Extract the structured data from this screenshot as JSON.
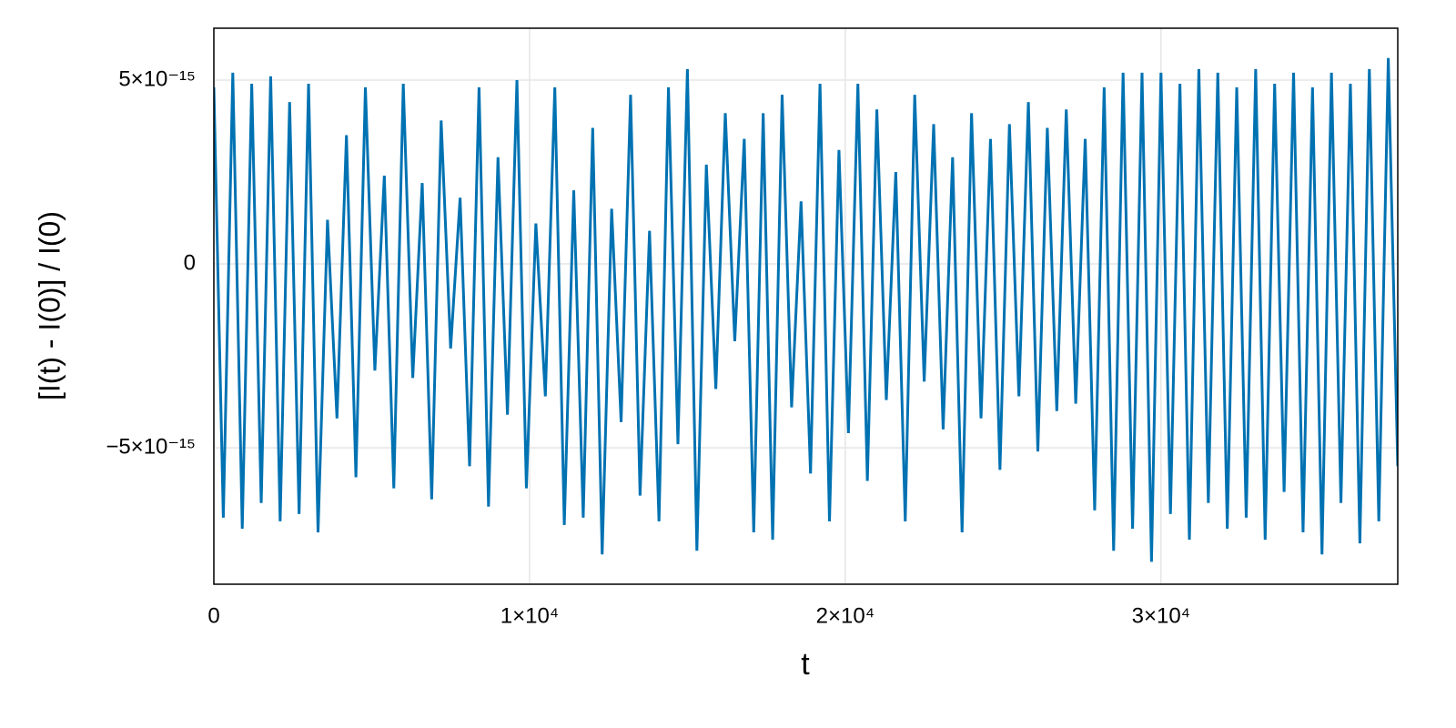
{
  "chart_data": {
    "type": "line",
    "xlabel": "t",
    "ylabel": "[I(t) - I(0)] / I(0)",
    "x": [
      0,
      300,
      600,
      900,
      1200,
      1500,
      1800,
      2100,
      2400,
      2700,
      3000,
      3300,
      3600,
      3900,
      4200,
      4500,
      4800,
      5100,
      5400,
      5700,
      6000,
      6300,
      6600,
      6900,
      7200,
      7500,
      7800,
      8100,
      8400,
      8700,
      9000,
      9300,
      9600,
      9900,
      10200,
      10500,
      10800,
      11100,
      11400,
      11700,
      12000,
      12300,
      12600,
      12900,
      13200,
      13500,
      13800,
      14100,
      14400,
      14700,
      15000,
      15300,
      15600,
      15900,
      16200,
      16500,
      16800,
      17100,
      17400,
      17700,
      18000,
      18300,
      18600,
      18900,
      19200,
      19500,
      19800,
      20100,
      20400,
      20700,
      21000,
      21300,
      21600,
      21900,
      22200,
      22500,
      22800,
      23100,
      23400,
      23700,
      24000,
      24300,
      24600,
      24900,
      25200,
      25500,
      25800,
      26100,
      26400,
      26700,
      27000,
      27300,
      27600,
      27900,
      28200,
      28500,
      28800,
      29100,
      29400,
      29700,
      30000,
      30300,
      30600,
      30900,
      31200,
      31500,
      31800,
      32100,
      32400,
      32700,
      33000,
      33300,
      33600,
      33900,
      34200,
      34500,
      34800,
      35100,
      35400,
      35700,
      36000,
      36300,
      36600,
      36900,
      37200,
      37500
    ],
    "series": [
      {
        "color": "#0072b2",
        "values": [
          4.8e-15,
          -6.9e-15,
          5.2e-15,
          -7.2e-15,
          4.9e-15,
          -6.5e-15,
          5.1e-15,
          -7e-15,
          4.4e-15,
          -6.8e-15,
          4.9e-15,
          -7.3e-15,
          1.2e-15,
          -4.2e-15,
          3.5e-15,
          -5.8e-15,
          4.8e-15,
          -2.9e-15,
          2.4e-15,
          -6.1e-15,
          4.9e-15,
          -3.1e-15,
          2.2e-15,
          -6.4e-15,
          3.9e-15,
          -2.3e-15,
          1.8e-15,
          -5.5e-15,
          4.8e-15,
          -6.6e-15,
          2.9e-15,
          -4.1e-15,
          5e-15,
          -6.1e-15,
          1.1e-15,
          -3.6e-15,
          4.8e-15,
          -7.1e-15,
          2e-15,
          -6.9e-15,
          3.7e-15,
          -7.9e-15,
          1.5e-15,
          -4.3e-15,
          4.6e-15,
          -6.3e-15,
          9e-16,
          -7e-15,
          4.8e-15,
          -4.9e-15,
          5.3e-15,
          -7.8e-15,
          2.7e-15,
          -3.4e-15,
          4.1e-15,
          -2.1e-15,
          3.4e-15,
          -7.3e-15,
          4.1e-15,
          -7.5e-15,
          4.6e-15,
          -3.9e-15,
          1.7e-15,
          -5.7e-15,
          4.9e-15,
          -7e-15,
          3.1e-15,
          -4.6e-15,
          4.9e-15,
          -5.9e-15,
          4.2e-15,
          -3.7e-15,
          2.5e-15,
          -7e-15,
          4.6e-15,
          -3.2e-15,
          3.8e-15,
          -4.5e-15,
          2.9e-15,
          -7.3e-15,
          4.1e-15,
          -4.2e-15,
          3.4e-15,
          -5.6e-15,
          3.8e-15,
          -3.6e-15,
          4.4e-15,
          -5.1e-15,
          3.7e-15,
          -4e-15,
          4.2e-15,
          -3.8e-15,
          3.4e-15,
          -6.7e-15,
          4.8e-15,
          -7.8e-15,
          5.2e-15,
          -7.2e-15,
          5.2e-15,
          -8.1e-15,
          5.2e-15,
          -6.8e-15,
          4.9e-15,
          -7.5e-15,
          5.3e-15,
          -6.5e-15,
          5.2e-15,
          -7.2e-15,
          4.8e-15,
          -6.9e-15,
          5.3e-15,
          -7.5e-15,
          4.9e-15,
          -6.2e-15,
          5.2e-15,
          -7.3e-15,
          4.8e-15,
          -7.9e-15,
          5.2e-15,
          -6.5e-15,
          4.9e-15,
          -7.6e-15,
          5.3e-15,
          -7e-15,
          5.6e-15,
          -5.5e-15
        ]
      }
    ],
    "xlim": [
      0,
      37500
    ],
    "xticks": [
      0,
      {
        "value": 10000,
        "label": "1×10⁴"
      },
      {
        "value": 20000,
        "label": "2×10⁴"
      },
      {
        "value": 30000,
        "label": "3×10⁴"
      }
    ],
    "ylim": [
      -8.71e-15,
      6.41e-15
    ],
    "yticks": [
      {
        "value": -5e-15,
        "label": "−5×10⁻¹⁵"
      },
      0,
      {
        "value": 5e-15,
        "label": "5×10⁻¹⁵"
      }
    ],
    "grid": true
  }
}
